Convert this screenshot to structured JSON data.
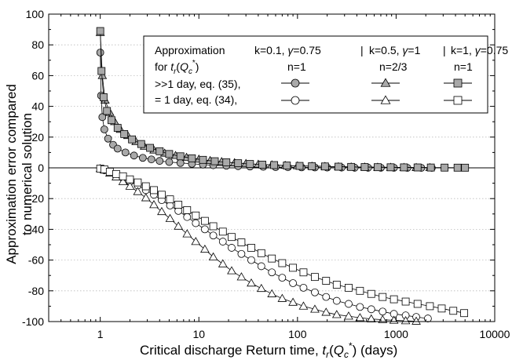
{
  "chart_data": {
    "type": "scatter",
    "xlabel": "Critical discharge Return time, t_r(Q_c*) (days)",
    "ylabel": [
      "Approximation error compared",
      "to numerical solution"
    ],
    "x_scale": "log",
    "xlim": [
      0.3,
      10000
    ],
    "ylim": [
      -100,
      100
    ],
    "x_ticks": [
      1,
      10,
      100,
      1000,
      10000
    ],
    "x_tick_labels": [
      "1",
      "10",
      "100",
      "1000",
      "10000"
    ],
    "y_ticks": [
      -100,
      -80,
      -60,
      -40,
      -20,
      0,
      20,
      40,
      60,
      80,
      100
    ],
    "y_tick_labels": [
      "-100",
      "-80",
      "-60",
      "-40",
      "-20",
      "0",
      "20",
      "40",
      "60",
      "80",
      "100"
    ],
    "grid": "horizontal dotted",
    "legend": {
      "placement": "top-right",
      "header_left": "Approximation",
      "header_left_line2": "for t_r(Q_c*)",
      "columns": [
        {
          "param": "k=0.1, γ=0.75",
          "n": "n=1"
        },
        {
          "param": "k=0.5, γ=1",
          "n": "n=2/3"
        },
        {
          "param": "k=1, γ=0.75",
          "n": "n=1"
        }
      ],
      "separator": "|",
      "rows": [
        {
          "label": ">>1 day, eq. (35),",
          "fill": "gray"
        },
        {
          "label": "=  1 day, eq. (34),",
          "fill": "white"
        }
      ]
    },
    "series": [
      {
        "marker": "circle",
        "fill": "#a9a9a9",
        "x": [
          1.0,
          1.02,
          1.05,
          1.1,
          1.2,
          1.35,
          1.5,
          1.8,
          2.2,
          2.7,
          3.3,
          4,
          5,
          6.5,
          8.5,
          11,
          14,
          19,
          25,
          33,
          45,
          60,
          80,
          110,
          150,
          200,
          280,
          380,
          520,
          700,
          950,
          1300,
          1800,
          2300
        ],
        "y": [
          75,
          47,
          33,
          25,
          19,
          15,
          12.5,
          10,
          8,
          6.5,
          5.5,
          4.5,
          3.8,
          3.2,
          2.6,
          2.1,
          1.7,
          1.4,
          1.1,
          0.9,
          0.7,
          0.5,
          0.4,
          0.3,
          0.25,
          0.2,
          0.15,
          0.1,
          0.1,
          0.05,
          0.05,
          0.0,
          0.0,
          0.0
        ]
      },
      {
        "marker": "triangle",
        "fill": "#a9a9a9",
        "x": [
          1.0,
          1.05,
          1.12,
          1.25,
          1.4,
          1.6,
          1.9,
          2.3,
          2.8,
          3.5,
          4.5,
          5.8,
          7.5,
          10,
          13,
          17,
          23,
          30,
          40,
          55,
          75,
          100,
          140,
          190,
          260,
          350,
          480,
          650,
          880,
          1200,
          1600,
          2200
        ],
        "y": [
          88,
          60,
          44,
          36,
          30,
          25,
          21,
          17,
          14,
          11.5,
          9.5,
          8,
          6.8,
          5.6,
          4.7,
          4,
          3.3,
          2.8,
          2.3,
          1.9,
          1.6,
          1.3,
          1.1,
          0.9,
          0.7,
          0.6,
          0.5,
          0.4,
          0.3,
          0.25,
          0.2,
          0.15
        ]
      },
      {
        "marker": "square",
        "fill": "#a9a9a9",
        "x": [
          1.0,
          1.03,
          1.08,
          1.17,
          1.3,
          1.5,
          1.75,
          2.1,
          2.6,
          3.2,
          4,
          5,
          6.5,
          8.5,
          11,
          14.5,
          19,
          25,
          33,
          44,
          58,
          78,
          105,
          140,
          190,
          260,
          350,
          480,
          650,
          880,
          1200,
          1650,
          2250,
          3100,
          4200,
          5000
        ],
        "y": [
          89,
          63,
          46,
          37,
          31,
          26,
          22,
          18.5,
          15.5,
          13,
          10.8,
          9,
          7.5,
          6.2,
          5.2,
          4.3,
          3.6,
          3,
          2.5,
          2.1,
          1.8,
          1.5,
          1.25,
          1.05,
          0.9,
          0.75,
          0.6,
          0.5,
          0.42,
          0.35,
          0.3,
          0.25,
          0.2,
          0.15,
          0.12,
          0.1
        ]
      },
      {
        "marker": "circle",
        "fill": "#ffffff",
        "x": [
          1.0,
          1.1,
          1.25,
          1.45,
          1.7,
          2.0,
          2.4,
          2.9,
          3.5,
          4.2,
          5.1,
          6.2,
          7.6,
          9.3,
          11.5,
          14,
          17.5,
          21.5,
          27,
          34,
          43,
          55,
          70,
          90,
          115,
          150,
          195,
          250,
          330,
          430,
          560,
          730,
          950,
          1250,
          1600,
          2100
        ],
        "y": [
          -0.5,
          -1.5,
          -3,
          -4.5,
          -6.5,
          -9,
          -11.5,
          -14.5,
          -17.5,
          -21,
          -24.5,
          -28,
          -32,
          -36,
          -40,
          -44,
          -48,
          -52,
          -56,
          -60,
          -64,
          -68,
          -71.5,
          -75,
          -78,
          -81,
          -84,
          -86.5,
          -88.5,
          -90.5,
          -92,
          -93.5,
          -95,
          -96,
          -97,
          -98
        ]
      },
      {
        "marker": "triangle",
        "fill": "#ffffff",
        "x": [
          1.0,
          1.1,
          1.25,
          1.45,
          1.7,
          2.0,
          2.4,
          2.9,
          3.5,
          4.2,
          5.1,
          6.2,
          7.6,
          9.3,
          11.5,
          14,
          17.5,
          21.5,
          27,
          34,
          43,
          55,
          70,
          90,
          115,
          150,
          195,
          250,
          330,
          430,
          560,
          730,
          950,
          1250,
          1600
        ],
        "y": [
          -0.5,
          -1.5,
          -3.5,
          -6,
          -9,
          -12,
          -15.5,
          -19.5,
          -24,
          -28.5,
          -33,
          -38,
          -43,
          -48,
          -53,
          -58,
          -62.5,
          -67,
          -71,
          -75,
          -78.5,
          -82,
          -85,
          -87.5,
          -90,
          -92,
          -94,
          -95.5,
          -96.5,
          -97.5,
          -98.3,
          -98.8,
          -99.2,
          -99.5,
          -99.8
        ]
      },
      {
        "marker": "square",
        "fill": "#ffffff",
        "x": [
          1.0,
          1.1,
          1.25,
          1.45,
          1.7,
          2.0,
          2.4,
          2.9,
          3.5,
          4.2,
          5.1,
          6.2,
          7.6,
          9.3,
          11.5,
          14,
          17.5,
          21.5,
          27,
          34,
          43,
          55,
          70,
          90,
          115,
          150,
          195,
          250,
          330,
          430,
          560,
          730,
          950,
          1250,
          1650,
          2200,
          2900,
          3800,
          4900
        ],
        "y": [
          -0.5,
          -1,
          -2.5,
          -4,
          -5.5,
          -7.5,
          -9.5,
          -12,
          -14.5,
          -17.5,
          -20.5,
          -24,
          -27.5,
          -31,
          -34.5,
          -38,
          -41.5,
          -45,
          -48.5,
          -52,
          -55.5,
          -59,
          -62,
          -65,
          -68,
          -71,
          -73.5,
          -76,
          -78,
          -80,
          -82,
          -84,
          -85.5,
          -87,
          -88.5,
          -90,
          -91.5,
          -93,
          -94.5
        ]
      }
    ]
  }
}
